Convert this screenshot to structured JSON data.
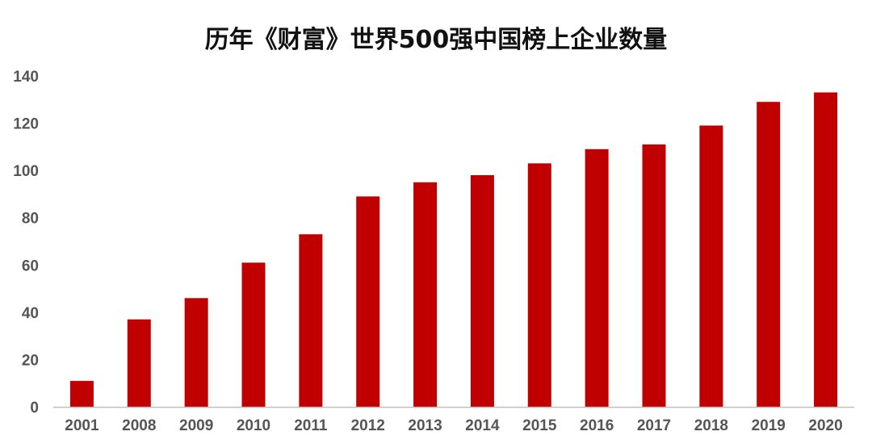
{
  "chart_data": {
    "type": "bar",
    "title": "历年《财富》世界500强中国榜上企业数量",
    "xlabel": "",
    "ylabel": "",
    "categories": [
      "2001",
      "2008",
      "2009",
      "2010",
      "2011",
      "2012",
      "2013",
      "2014",
      "2015",
      "2016",
      "2017",
      "2018",
      "2019",
      "2020"
    ],
    "values": [
      11,
      37,
      46,
      61,
      73,
      89,
      95,
      98,
      103,
      109,
      111,
      119,
      129,
      133
    ],
    "ylim": [
      0,
      140
    ],
    "yticks": [
      "0",
      "20",
      "40",
      "60",
      "80",
      "100",
      "120",
      "140"
    ],
    "grid": false,
    "legend": "none",
    "bar_color": "#c00000",
    "axis_color": "#bfbfbf"
  }
}
